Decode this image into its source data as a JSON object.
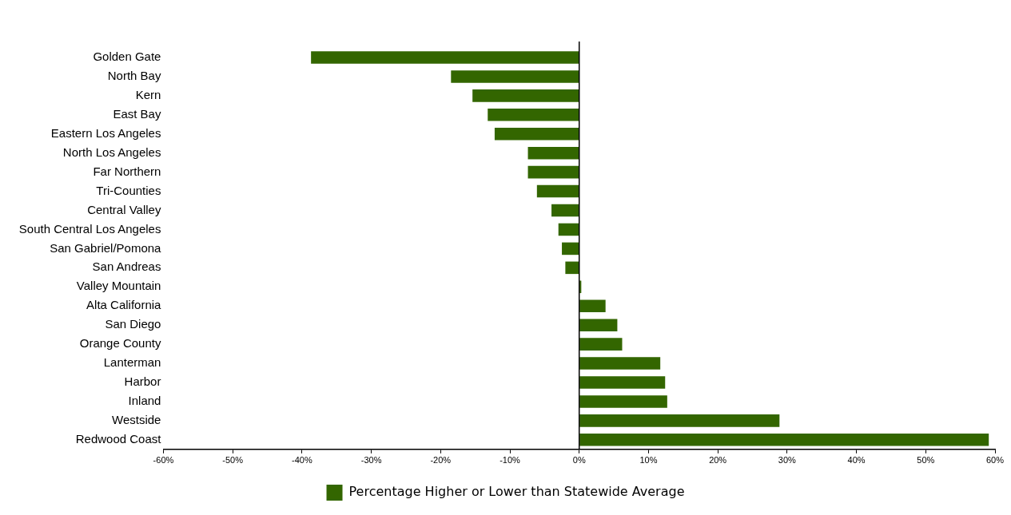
{
  "chart_data": {
    "type": "bar",
    "orientation": "horizontal",
    "categories": [
      "Golden Gate",
      "North Bay",
      "Kern",
      "East Bay",
      "Eastern Los Angeles",
      "North Los Angeles",
      "Far Northern",
      "Tri-Counties",
      "Central Valley",
      "South Central Los Angeles",
      "San Gabriel/Pomona",
      "San Andreas",
      "Valley Mountain",
      "Alta California",
      "San Diego",
      "Orange County",
      "Lanterman",
      "Harbor",
      "Inland",
      "Westside",
      "Redwood Coast"
    ],
    "series": [
      {
        "name": "Percentage Higher or Lower than Statewide Average",
        "color": "#336600",
        "values": [
          -38.7,
          -18.5,
          -15.4,
          -13.2,
          -12.2,
          -7.4,
          -7.4,
          -6.1,
          -4.0,
          -3.0,
          -2.5,
          -2.0,
          0.3,
          3.8,
          5.5,
          6.2,
          11.7,
          12.4,
          12.7,
          28.9,
          59.1
        ]
      }
    ],
    "xlim": [
      -60,
      60
    ],
    "xticks": [
      {
        "value": -60,
        "label": "-60%"
      },
      {
        "value": -50,
        "label": "-50%"
      },
      {
        "value": -40,
        "label": "-40%"
      },
      {
        "value": -30,
        "label": "-30%"
      },
      {
        "value": -20,
        "label": "-20%"
      },
      {
        "value": -10,
        "label": "-10%"
      },
      {
        "value": 0,
        "label": "0%"
      },
      {
        "value": 10,
        "label": "10%"
      },
      {
        "value": 20,
        "label": "20%"
      },
      {
        "value": 30,
        "label": "30%"
      },
      {
        "value": 40,
        "label": "40%"
      },
      {
        "value": 50,
        "label": "50%"
      },
      {
        "value": 60,
        "label": "60%"
      }
    ],
    "ref_lines": [
      {
        "axis": "x",
        "value": 0,
        "color": "#000000"
      }
    ],
    "legend": "bottom"
  }
}
